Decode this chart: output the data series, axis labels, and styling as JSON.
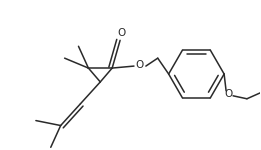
{
  "background": "#ffffff",
  "line_color": "#2a2a2a",
  "line_width": 1.1,
  "figsize": [
    2.61,
    1.5
  ],
  "dpi": 100,
  "xlim": [
    0,
    261
  ],
  "ylim": [
    0,
    150
  ]
}
